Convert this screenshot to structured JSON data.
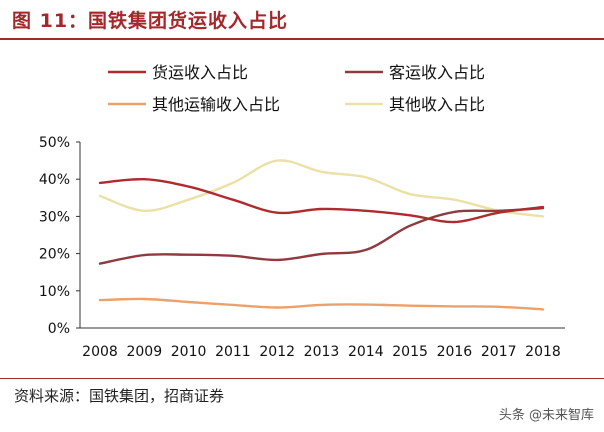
{
  "title": "图 11：国铁集团货运收入占比",
  "source": "资料来源：国铁集团，招商证券",
  "watermark": "头条 @未来智库",
  "chart_data": {
    "type": "line",
    "title": "",
    "xlabel": "",
    "ylabel": "",
    "ylim": [
      0,
      50
    ],
    "y_ticks": [
      "0%",
      "10%",
      "20%",
      "30%",
      "40%",
      "50%"
    ],
    "grid": false,
    "legend_position": "top",
    "categories": [
      "2008",
      "2009",
      "2010",
      "2011",
      "2012",
      "2013",
      "2014",
      "2015",
      "2016",
      "2017",
      "2018"
    ],
    "series": [
      {
        "name": "货运收入占比",
        "color": "#b02a2e",
        "values": [
          39.0,
          40.0,
          38.0,
          34.5,
          31.0,
          32.0,
          31.5,
          30.3,
          28.5,
          31.0,
          32.5
        ]
      },
      {
        "name": "客运收入占比",
        "color": "#8e3a3f",
        "values": [
          17.3,
          19.6,
          19.7,
          19.4,
          18.3,
          19.9,
          21.0,
          27.5,
          31.2,
          31.5,
          32.2
        ]
      },
      {
        "name": "其他运输收入占比",
        "color": "#eda16a",
        "values": [
          7.5,
          7.8,
          7.0,
          6.2,
          5.5,
          6.2,
          6.3,
          6.0,
          5.8,
          5.7,
          5.0
        ]
      },
      {
        "name": "其他收入占比",
        "color": "#ebe0a6",
        "values": [
          35.5,
          31.5,
          34.5,
          39.0,
          45.0,
          42.0,
          40.5,
          36.0,
          34.5,
          31.5,
          30.0
        ]
      }
    ]
  }
}
